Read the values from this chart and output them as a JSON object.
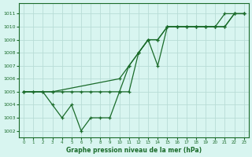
{
  "xlabel": "Graphe pression niveau de la mer (hPa)",
  "bg_color": "#d8f5f0",
  "grid_color": "#b8dcd6",
  "line_color": "#1a6b2a",
  "ylim": [
    1001.5,
    1011.8
  ],
  "xlim": [
    -0.5,
    23.5
  ],
  "yticks": [
    1002,
    1003,
    1004,
    1005,
    1006,
    1007,
    1008,
    1009,
    1010,
    1011
  ],
  "xticks": [
    0,
    1,
    2,
    3,
    4,
    5,
    6,
    7,
    8,
    9,
    10,
    11,
    12,
    13,
    14,
    15,
    16,
    17,
    18,
    19,
    20,
    21,
    22,
    23
  ],
  "s1_x": [
    0,
    1,
    2,
    3,
    4,
    5,
    6,
    7,
    8,
    9,
    10,
    11,
    12,
    13,
    14,
    15,
    16,
    17,
    18,
    19,
    20,
    21,
    22,
    23
  ],
  "s1_y": [
    1005,
    1005,
    1005,
    1004,
    1003,
    1004,
    1002,
    1003,
    1003,
    1003,
    1005,
    1005,
    1008,
    1009,
    1007,
    1010,
    1010,
    1010,
    1010,
    1010,
    1010,
    1011,
    1011,
    1011
  ],
  "s2_x": [
    0,
    1,
    2,
    3,
    4,
    5,
    6,
    7,
    8,
    9,
    10,
    11,
    12,
    13,
    14,
    15,
    16,
    17,
    18,
    19,
    20,
    21,
    22,
    23
  ],
  "s2_y": [
    1005,
    1005,
    1005,
    1005,
    1005,
    1005,
    1005,
    1005,
    1005,
    1005,
    1005,
    1007,
    1008,
    1009,
    1009,
    1010,
    1010,
    1010,
    1010,
    1010,
    1010,
    1010,
    1011,
    1011
  ],
  "s3_x": [
    0,
    3,
    10,
    11,
    12,
    13,
    14,
    15,
    16,
    17,
    18,
    19,
    20,
    21,
    22,
    23
  ],
  "s3_y": [
    1005,
    1005,
    1006,
    1007,
    1008,
    1009,
    1009,
    1010,
    1010,
    1010,
    1010,
    1010,
    1010,
    1010,
    1011,
    1011
  ]
}
